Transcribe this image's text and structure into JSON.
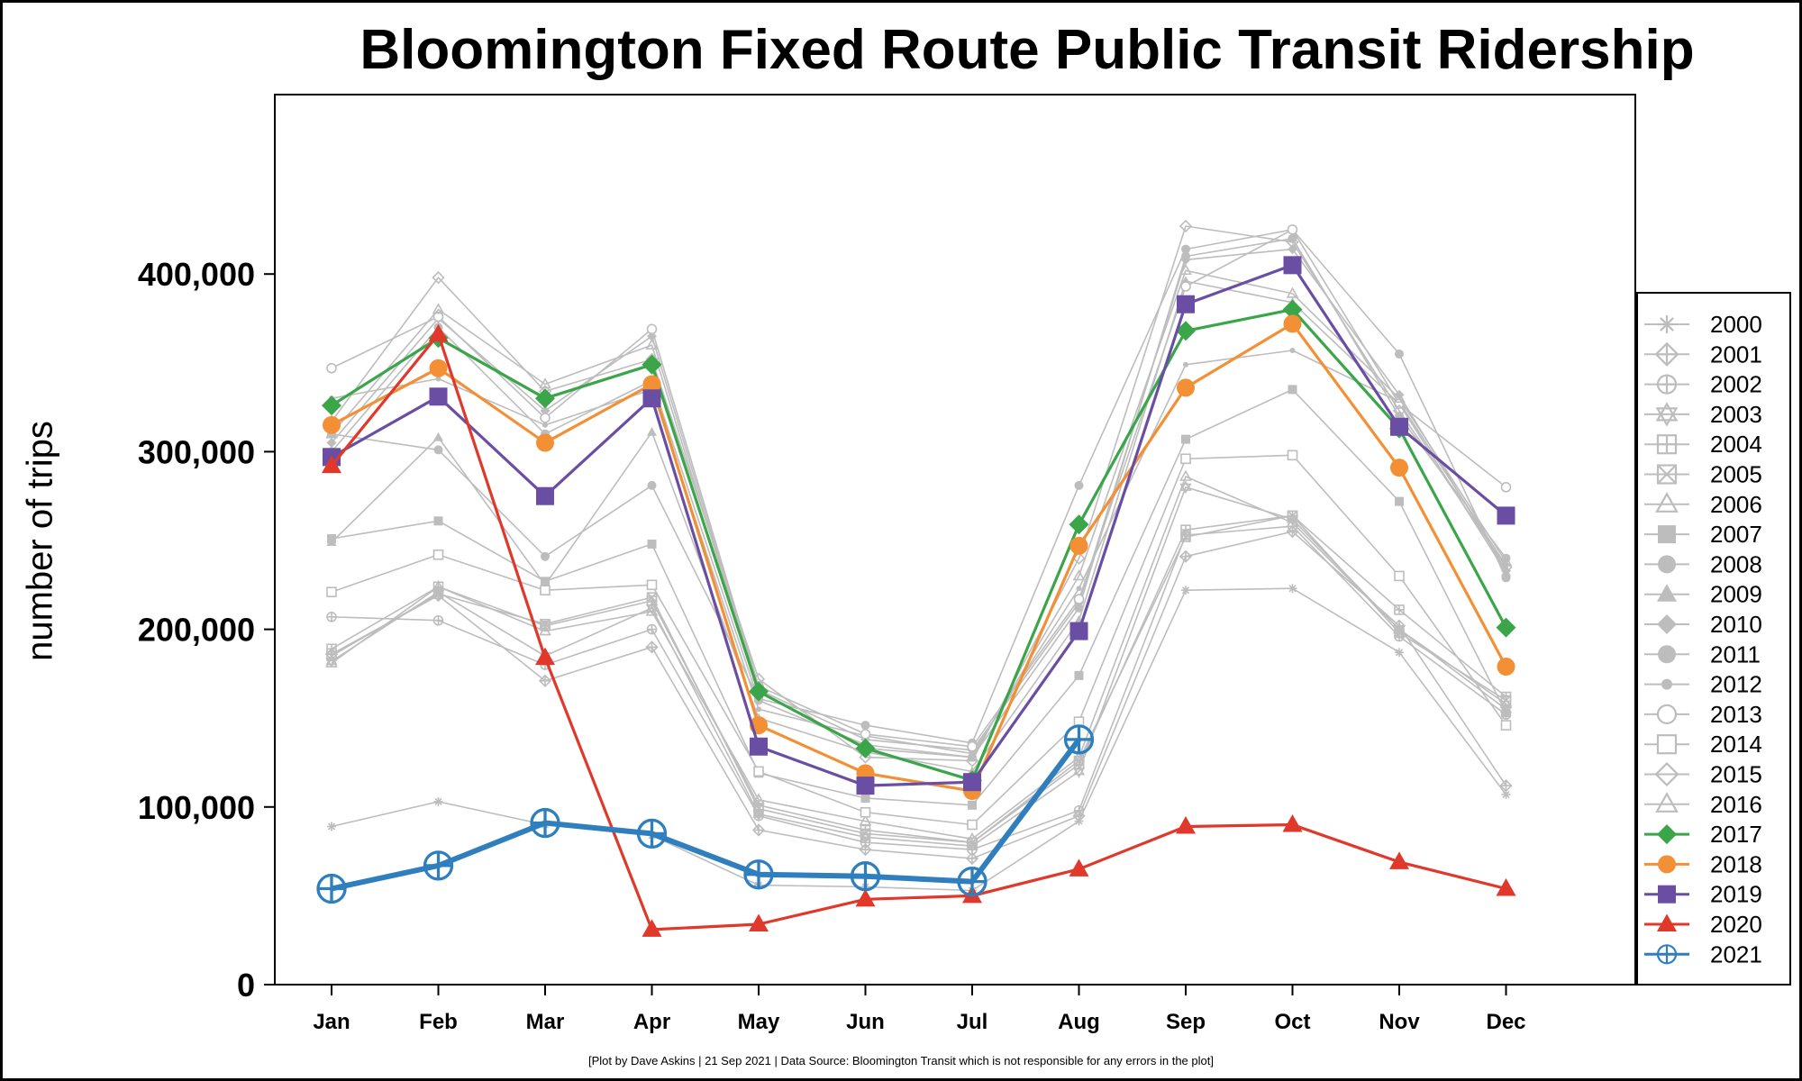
{
  "footer": "[Plot by Dave Askins | 21 Sep 2021 | Data Source: Bloomington Transit which is not responsible for any errors in the plot]",
  "chart_data": {
    "type": "line",
    "title": "Bloomington Fixed Route Public Transit Ridership",
    "ylabel": "number of trips",
    "xlabel": "",
    "categories": [
      "Jan",
      "Feb",
      "Mar",
      "Apr",
      "May",
      "Jun",
      "Jul",
      "Aug",
      "Sep",
      "Oct",
      "Nov",
      "Dec"
    ],
    "ylim": [
      0,
      500000
    ],
    "yticks": [
      0,
      100000,
      200000,
      300000,
      400000
    ],
    "ytick_labels": [
      "0",
      "100,000",
      "200,000",
      "300,000",
      "400,000"
    ],
    "legend_position": "right",
    "grid": false,
    "series": [
      {
        "name": "2000",
        "color": "#bdbdbd",
        "marker": "asterisk",
        "values": [
          89000,
          103000,
          90000,
          84000,
          56000,
          55000,
          53000,
          92000,
          222000,
          223000,
          187000,
          107000
        ]
      },
      {
        "name": "2001",
        "color": "#bdbdbd",
        "marker": "diamond-plus",
        "values": [
          186000,
          219000,
          171000,
          190000,
          87000,
          76000,
          71000,
          95000,
          241000,
          255000,
          202000,
          112000
        ]
      },
      {
        "name": "2002",
        "color": "#bdbdbd",
        "marker": "circle-plus",
        "values": [
          207000,
          205000,
          180000,
          200000,
          95000,
          80000,
          76000,
          98000,
          253000,
          258000,
          196000,
          152000
        ]
      },
      {
        "name": "2003",
        "color": "#bdbdbd",
        "marker": "star",
        "values": [
          182000,
          221000,
          185000,
          212000,
          96000,
          83000,
          78000,
          120000,
          280000,
          262000,
          200000,
          155000
        ]
      },
      {
        "name": "2004",
        "color": "#bdbdbd",
        "marker": "square-plus",
        "values": [
          189000,
          224000,
          202000,
          216000,
          101000,
          87000,
          80000,
          124000,
          256000,
          264000,
          211000,
          162000
        ]
      },
      {
        "name": "2005",
        "color": "#bdbdbd",
        "marker": "square-x",
        "values": [
          185000,
          220000,
          203000,
          218000,
          99000,
          85000,
          80000,
          126000,
          252000,
          264000,
          198000,
          160000
        ]
      },
      {
        "name": "2006",
        "color": "#bdbdbd",
        "marker": "triangle-open",
        "values": [
          181000,
          224000,
          199000,
          210000,
          104000,
          92000,
          82000,
          128000,
          286000,
          260000,
          200000,
          158000
        ]
      },
      {
        "name": "2007",
        "color": "#bdbdbd",
        "marker": "square",
        "values": [
          251000,
          261000,
          227000,
          248000,
          119000,
          105000,
          101000,
          174000,
          307000,
          335000,
          272000,
          153000
        ]
      },
      {
        "name": "2008",
        "color": "#bdbdbd",
        "marker": "circle",
        "values": [
          310000,
          301000,
          241000,
          281000,
          161000,
          146000,
          136000,
          281000,
          414000,
          425000,
          355000,
          229000
        ]
      },
      {
        "name": "2009",
        "color": "#bdbdbd",
        "marker": "triangle",
        "values": [
          249000,
          308000,
          225000,
          311000,
          150000,
          131000,
          120000,
          205000,
          396000,
          384000,
          327000,
          232000
        ]
      },
      {
        "name": "2010",
        "color": "#bdbdbd",
        "marker": "diamond",
        "values": [
          305000,
          375000,
          323000,
          365000,
          166000,
          138000,
          132000,
          215000,
          408000,
          414000,
          332000,
          233000
        ]
      },
      {
        "name": "2011",
        "color": "#bdbdbd",
        "marker": "circle",
        "values": [
          300000,
          370000,
          310000,
          340000,
          160000,
          135000,
          128000,
          212000,
          410000,
          420000,
          320000,
          240000
        ]
      },
      {
        "name": "2012",
        "color": "#bdbdbd",
        "marker": "circle-small",
        "values": [
          330000,
          341000,
          315000,
          335000,
          155000,
          140000,
          130000,
          223000,
          349000,
          357000,
          328000,
          236000
        ]
      },
      {
        "name": "2013",
        "color": "#bdbdbd",
        "marker": "circle-open",
        "values": [
          347000,
          376000,
          319000,
          369000,
          168000,
          141000,
          134000,
          217000,
          393000,
          425000,
          327000,
          280000
        ]
      },
      {
        "name": "2014",
        "color": "#bdbdbd",
        "marker": "square-open",
        "values": [
          221000,
          242000,
          222000,
          225000,
          120000,
          97000,
          90000,
          148000,
          296000,
          298000,
          230000,
          146000
        ]
      },
      {
        "name": "2015",
        "color": "#bdbdbd",
        "marker": "diamond-open",
        "values": [
          317000,
          398000,
          334000,
          352000,
          172000,
          128000,
          126000,
          240000,
          427000,
          418000,
          323000,
          235000
        ]
      },
      {
        "name": "2016",
        "color": "#bdbdbd",
        "marker": "triangle-open",
        "values": [
          310000,
          380000,
          338000,
          360000,
          165000,
          133000,
          128000,
          230000,
          402000,
          389000,
          330000,
          238000
        ]
      },
      {
        "name": "2017",
        "color": "#3aa549",
        "marker": "diamond",
        "values": [
          326000,
          364000,
          330000,
          349000,
          165000,
          133000,
          115000,
          259000,
          368000,
          380000,
          313000,
          201000
        ]
      },
      {
        "name": "2018",
        "color": "#f39036",
        "marker": "circle",
        "values": [
          315000,
          347000,
          305000,
          338000,
          146000,
          119000,
          109000,
          247000,
          336000,
          372000,
          291000,
          179000
        ]
      },
      {
        "name": "2019",
        "color": "#6a4ea3",
        "marker": "square",
        "values": [
          297000,
          331000,
          275000,
          330000,
          134000,
          112000,
          114000,
          199000,
          383000,
          405000,
          314000,
          264000
        ]
      },
      {
        "name": "2020",
        "color": "#e0382a",
        "marker": "triangle",
        "values": [
          292000,
          366000,
          184000,
          31000,
          34000,
          48000,
          50000,
          65000,
          89000,
          90000,
          69000,
          54000
        ]
      },
      {
        "name": "2021",
        "color": "#2f7fbe",
        "marker": "circle-plus",
        "values": [
          54000,
          67000,
          91000,
          85000,
          62000,
          61000,
          58000,
          138000,
          null,
          null,
          null,
          null
        ]
      }
    ]
  }
}
